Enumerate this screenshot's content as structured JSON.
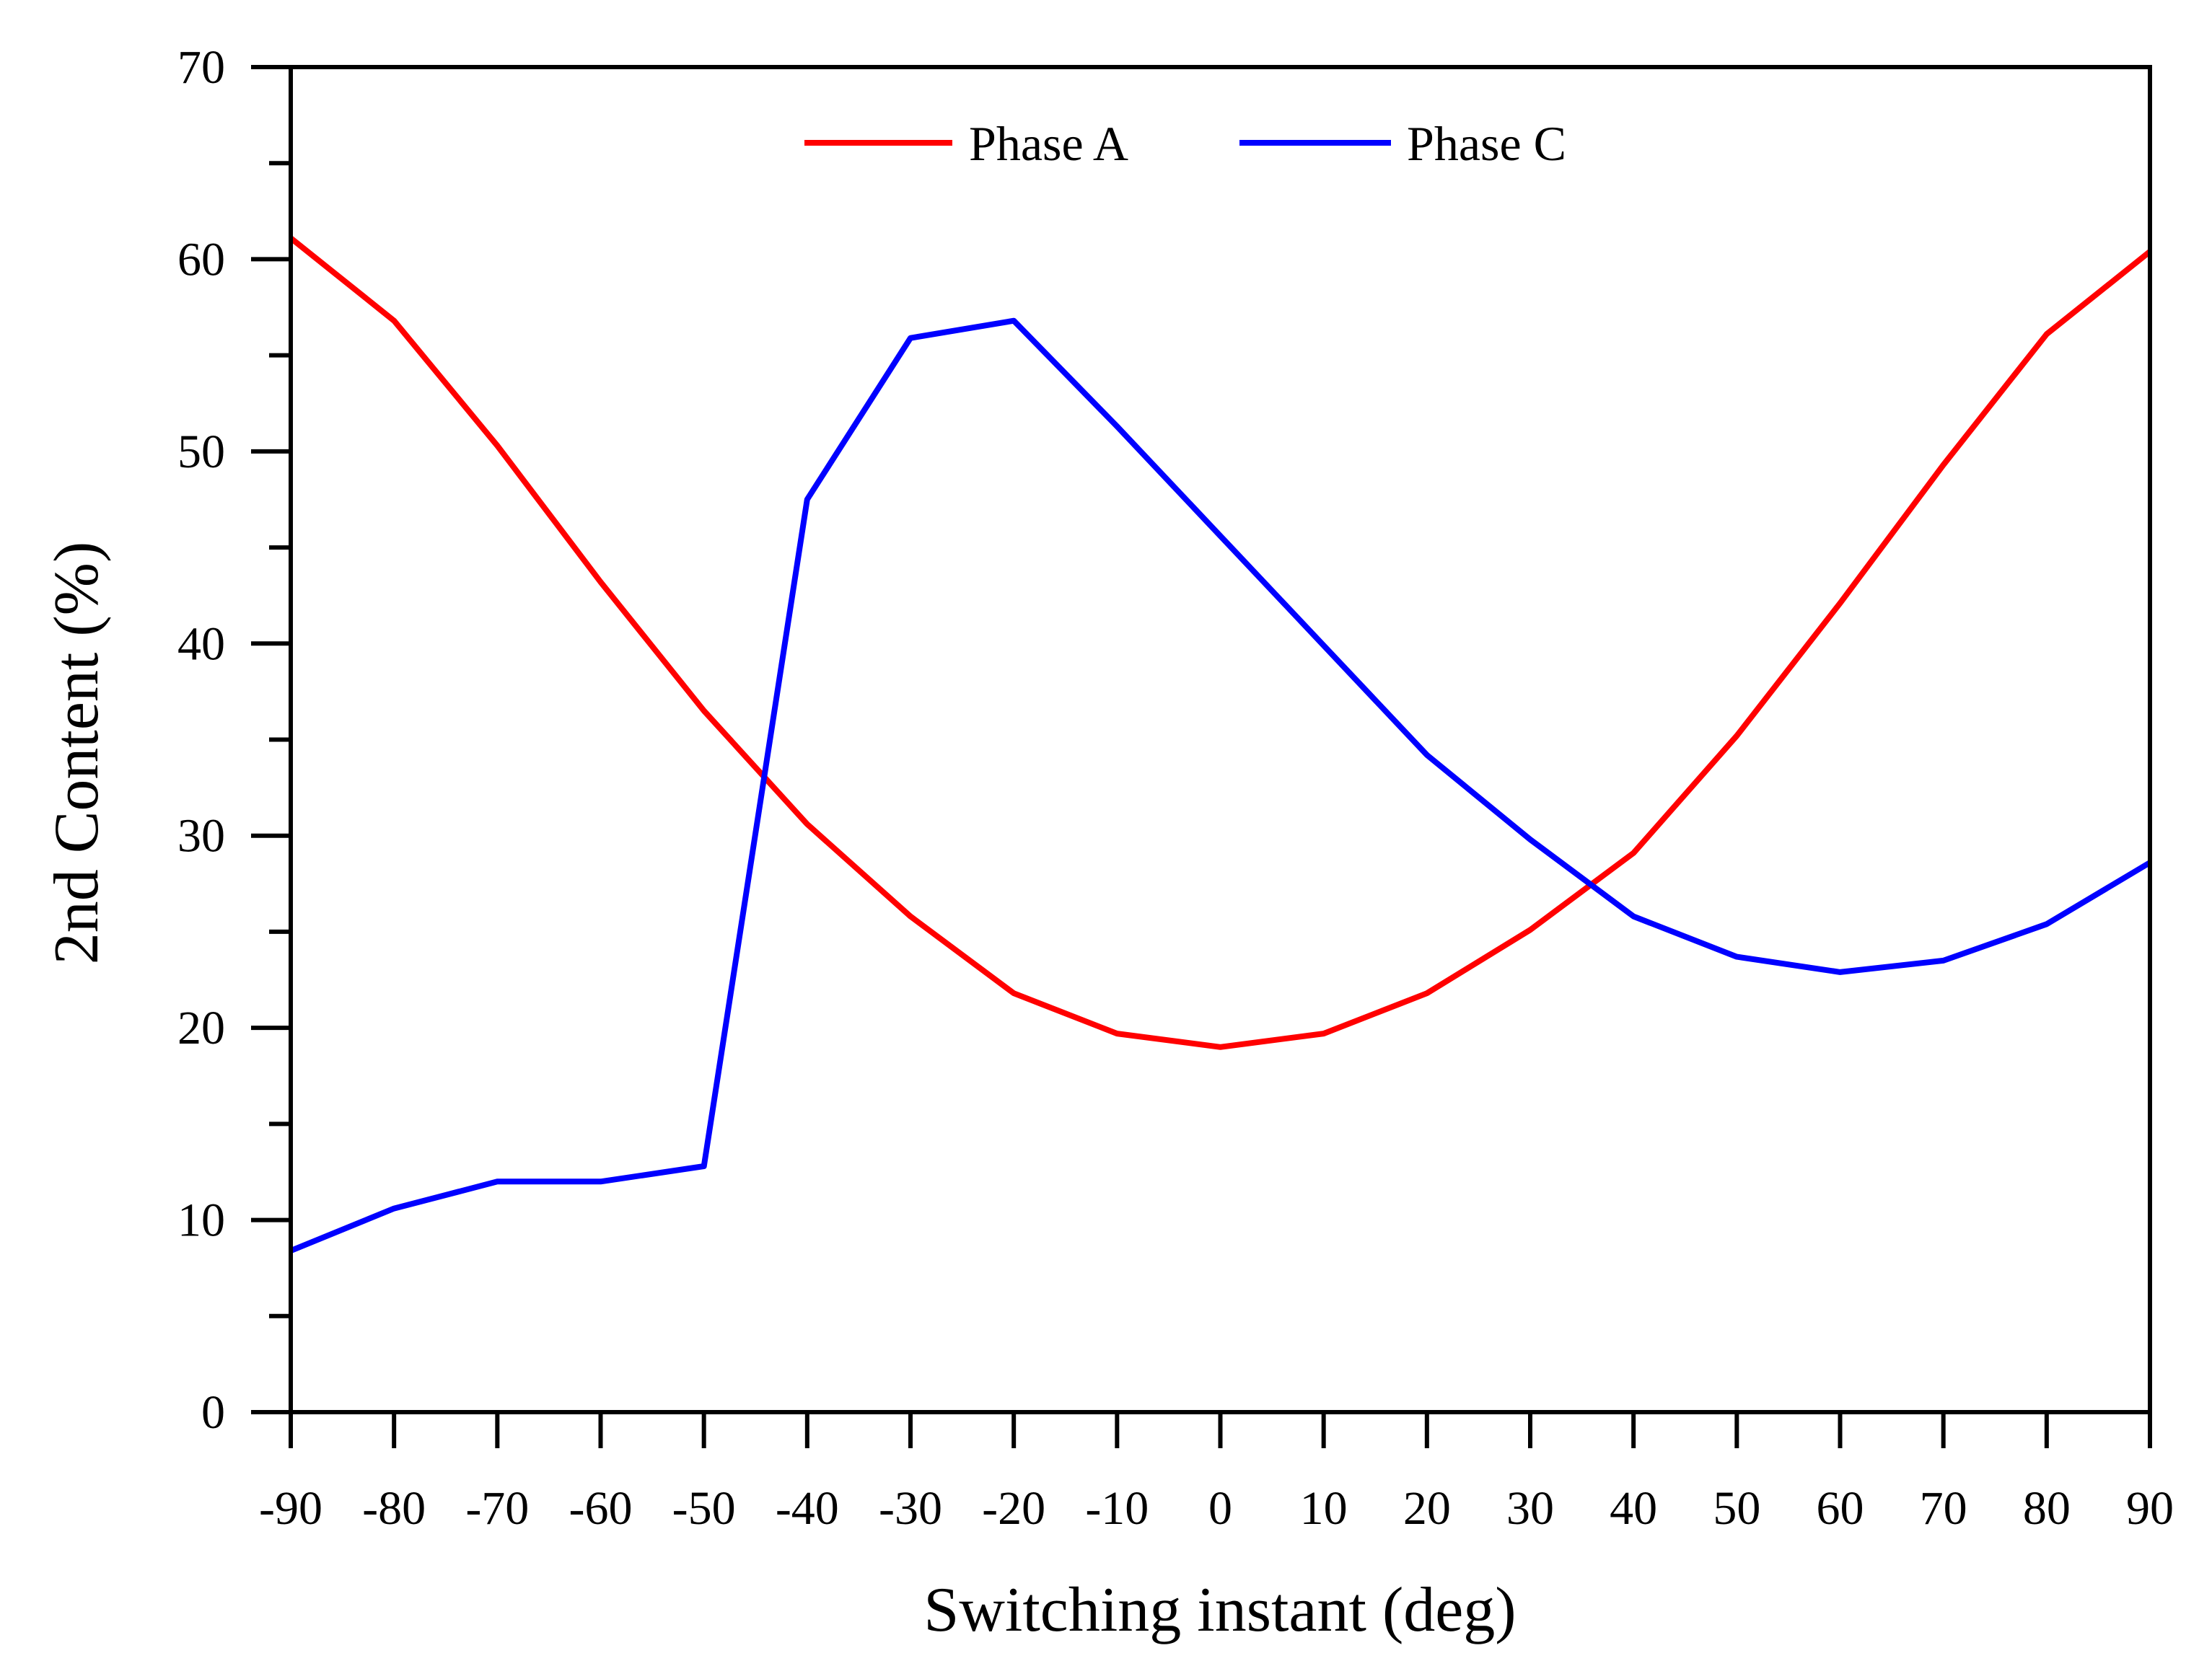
{
  "chart_data": {
    "type": "line",
    "title": "",
    "xlabel": "Switching instant (deg)",
    "ylabel": "2nd Content (%)",
    "xlim": [
      -90,
      90
    ],
    "ylim": [
      0,
      70
    ],
    "xticks": [
      -90,
      -80,
      -70,
      -60,
      -50,
      -40,
      -30,
      -20,
      -10,
      0,
      10,
      20,
      30,
      40,
      50,
      60,
      70,
      80,
      90
    ],
    "yticks": [
      0,
      10,
      20,
      30,
      40,
      50,
      60,
      70
    ],
    "grid": false,
    "legend": "top-center",
    "x": [
      -90,
      -80,
      -70,
      -60,
      -50,
      -40,
      -30,
      -20,
      -10,
      0,
      10,
      20,
      30,
      40,
      50,
      60,
      70,
      80,
      90
    ],
    "series": [
      {
        "name": "Phase A",
        "color": "#ff0000",
        "values": [
          61.1,
          56.8,
          50.3,
          43.2,
          36.5,
          30.6,
          25.8,
          21.8,
          19.7,
          19.0,
          19.7,
          21.8,
          25.1,
          29.1,
          35.2,
          42.1,
          49.3,
          56.1,
          60.4
        ]
      },
      {
        "name": "Phase C",
        "color": "#0000ff",
        "values": [
          8.4,
          10.6,
          12.0,
          12.0,
          12.8,
          47.5,
          55.9,
          56.8,
          51.3,
          45.6,
          39.9,
          34.2,
          29.8,
          25.8,
          23.7,
          22.9,
          23.5,
          25.4,
          28.6
        ]
      }
    ]
  }
}
